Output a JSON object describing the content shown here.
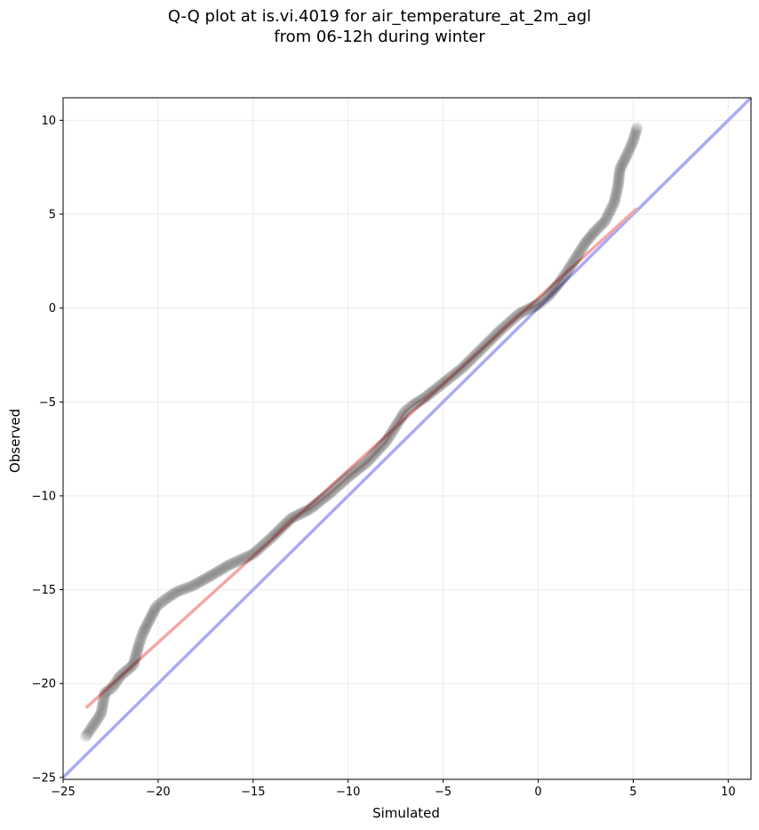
{
  "chart_data": {
    "type": "scatter",
    "title_line1": "Q-Q plot at is.vi.4019 for air_temperature_at_2m_agl",
    "title_line2": "from 06-12h during winter",
    "xlabel": "Simulated",
    "ylabel": "Observed",
    "xlim": [
      -25,
      11.2
    ],
    "ylim": [
      -25.1,
      11.2
    ],
    "xticks": [
      -25,
      -20,
      -15,
      -10,
      -5,
      0,
      5,
      10
    ],
    "yticks": [
      -25,
      -20,
      -15,
      -10,
      -5,
      0,
      5,
      10
    ],
    "xtick_labels": [
      "−25",
      "−20",
      "−15",
      "−10",
      "−5",
      "0",
      "5",
      "10"
    ],
    "ytick_labels": [
      "−25",
      "−20",
      "−15",
      "−10",
      "−5",
      "0",
      "5",
      "10"
    ],
    "grid": true,
    "reference_line": {
      "from": [
        -25,
        -25
      ],
      "to": [
        11.2,
        11.2
      ],
      "color": "#aaaaf4"
    },
    "fit_line": {
      "from": [
        -23.8,
        -21.3
      ],
      "to": [
        5.2,
        5.3
      ],
      "color": "#f4a6a6"
    },
    "point_color": "#000000",
    "quantile_curve": [
      [
        -23.8,
        -22.8
      ],
      [
        -23.0,
        -21.6
      ],
      [
        -22.8,
        -20.5
      ],
      [
        -22.4,
        -20.2
      ],
      [
        -22.0,
        -19.6
      ],
      [
        -21.3,
        -19.0
      ],
      [
        -21.0,
        -17.9
      ],
      [
        -20.8,
        -17.3
      ],
      [
        -20.4,
        -16.5
      ],
      [
        -20.1,
        -15.9
      ],
      [
        -19.6,
        -15.5
      ],
      [
        -19.0,
        -15.1
      ],
      [
        -18.2,
        -14.8
      ],
      [
        -17.3,
        -14.3
      ],
      [
        -16.3,
        -13.7
      ],
      [
        -15.0,
        -13.1
      ],
      [
        -14.0,
        -12.2
      ],
      [
        -13.0,
        -11.2
      ],
      [
        -12.0,
        -10.7
      ],
      [
        -11.0,
        -9.9
      ],
      [
        -10.0,
        -9.0
      ],
      [
        -9.0,
        -8.2
      ],
      [
        -8.0,
        -7.1
      ],
      [
        -7.5,
        -6.3
      ],
      [
        -7.0,
        -5.5
      ],
      [
        -6.5,
        -5.1
      ],
      [
        -6.0,
        -4.8
      ],
      [
        -5.0,
        -4.0
      ],
      [
        -4.0,
        -3.2
      ],
      [
        -3.0,
        -2.2
      ],
      [
        -2.0,
        -1.2
      ],
      [
        -1.0,
        -0.3
      ],
      [
        0.0,
        0.2
      ],
      [
        0.5,
        0.6
      ],
      [
        1.0,
        1.2
      ],
      [
        1.5,
        1.9
      ],
      [
        2.0,
        2.7
      ],
      [
        2.5,
        3.5
      ],
      [
        3.0,
        4.1
      ],
      [
        3.5,
        4.6
      ],
      [
        4.0,
        5.6
      ],
      [
        4.2,
        6.5
      ],
      [
        4.3,
        7.4
      ],
      [
        4.6,
        8.0
      ],
      [
        5.0,
        8.9
      ],
      [
        5.2,
        9.6
      ]
    ]
  }
}
